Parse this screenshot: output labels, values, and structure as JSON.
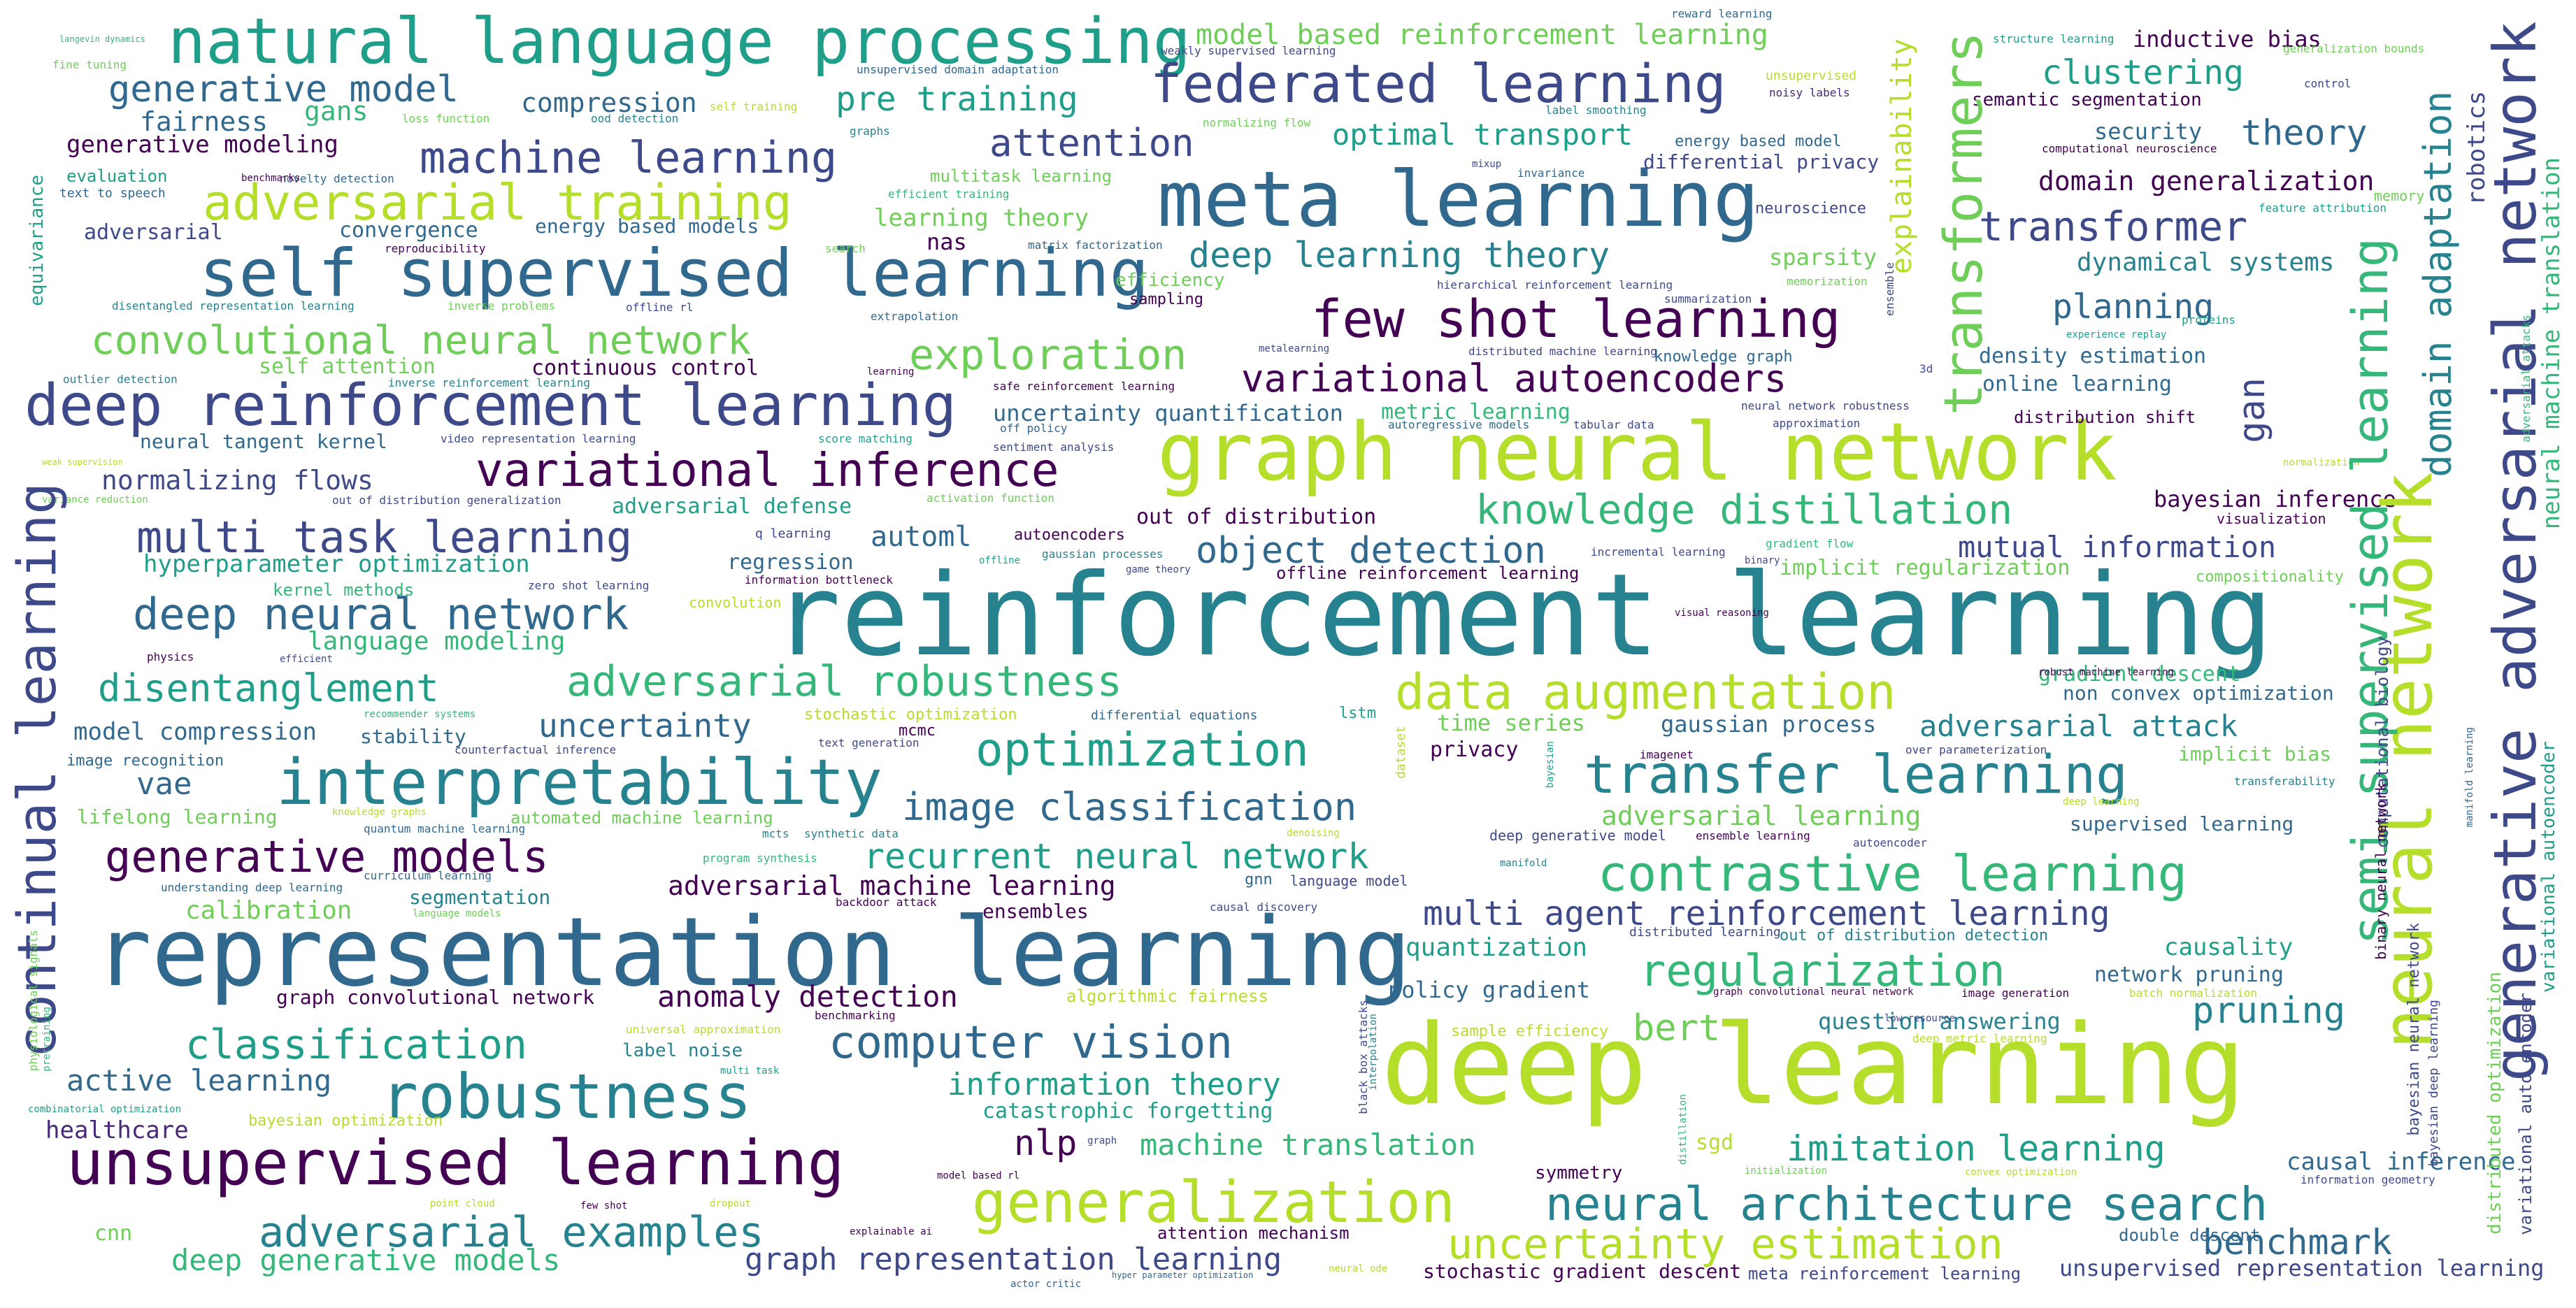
{
  "palette": {
    "lime": "#b5de2b",
    "green": "#6ece58",
    "teal_green": "#35b779",
    "teal": "#1f9e89",
    "cyan_teal": "#26828e",
    "blue": "#31688e",
    "indigo": "#3e4989",
    "violet": "#482878",
    "purple": "#440154"
  },
  "words": {
    "reinforcement_learning": "reinforcement learning",
    "deep_learning": "deep learning",
    "representation_learning": "representation learning",
    "graph_neural_network": "graph neural network",
    "meta_learning": "meta learning",
    "self_supervised_learning": "self supervised learning",
    "unsupervised_learning": "unsupervised learning",
    "natural_language_processing": "natural language processing",
    "deep_reinforcement_learning": "deep reinforcement learning",
    "interpretability": "interpretability",
    "generalization": "generalization",
    "robustness": "robustness",
    "federated_learning": "federated learning",
    "few_shot_learning": "few shot learning",
    "transfer_learning": "transfer learning",
    "contrastive_learning": "contrastive learning",
    "neural_network": "neural network",
    "generative_adversarial_network": "generative adversarial network",
    "semi_supervised_learning": "semi supervised learning",
    "transformers": "transformers",
    "continual_learning": "continual learning",
    "adversarial_training": "adversarial training",
    "machine_learning": "machine learning",
    "variational_inference": "variational inference",
    "adversarial_robustness": "adversarial robustness",
    "neural_architecture_search": "neural architecture search",
    "data_augmentation": "data augmentation",
    "computer_vision": "computer vision",
    "adversarial_examples": "adversarial examples",
    "uncertainty_estimation": "uncertainty estimation",
    "multi_task_learning": "multi task learning",
    "deep_neural_network": "deep neural network",
    "generative_models": "generative models",
    "convolutional_neural_network": "convolutional neural network",
    "knowledge_distillation": "knowledge distillation",
    "regularization": "regularization",
    "variational_autoencoders": "variational autoencoders",
    "multi_agent_reinforcement_learning": "multi agent reinforcement learning",
    "optimization": "optimization",
    "image_classification": "image classification",
    "disentanglement": "disentanglement",
    "classification": "classification",
    "exploration": "exploration",
    "recurrent_neural_network": "recurrent neural network",
    "object_detection": "object detection",
    "domain_adaptation": "domain adaptation",
    "transformer": "transformer",
    "deep_learning_theory": "deep learning theory",
    "generative_model": "generative model",
    "attention": "attention",
    "pre_training": "pre training",
    "clustering": "clustering",
    "theory": "theory",
    "model_based_reinforcement_learning": "model based reinforcement learning",
    "information_theory": "information theory",
    "machine_translation": "machine translation",
    "imitation_learning": "imitation learning",
    "benchmark": "benchmark",
    "graph_representation_learning": "graph representation learning",
    "deep_generative_models": "deep generative models",
    "active_learning": "active learning",
    "uncertainty": "uncertainty",
    "adversarial_attack": "adversarial attack",
    "adversarial_learning": "adversarial learning",
    "adversarial_machine_learning": "adversarial machine learning",
    "anomaly_detection": "anomaly detection",
    "planning": "planning",
    "optimal_transport": "optimal transport",
    "gan": "gan",
    "bert": "bert",
    "pruning": "pruning",
    "nlp": "nlp",
    "vae": "vae",
    "automl": "automl",
    "explainability": "explainability",
    "normalizing_flows": "normalizing flows",
    "mutual_information": "mutual information",
    "language_modeling": "language modeling",
    "calibration": "calibration",
    "healthcare": "healthcare",
    "domain_generalization": "domain generalization",
    "dynamical_systems": "dynamical systems",
    "causality": "causality",
    "causal_inference": "causal inference",
    "gaussian_process": "gaussian process",
    "quantization": "quantization",
    "policy_gradient": "policy gradient",
    "hyperparameter_optimization": "hyperparameter optimization",
    "fairness": "fairness",
    "gans": "gans",
    "compression": "compression",
    "generative_modeling": "generative modeling",
    "bayesian_inference": "bayesian inference",
    "model_compression": "model compression",
    "sparsity": "sparsity",
    "security": "security",
    "density_estimation": "density estimation",
    "online_learning": "online learning",
    "differential_privacy": "differential privacy",
    "question_answering": "question answering",
    "robotics": "robotics",
    "gradient_descent": "gradient descent",
    "uncertainty_quantification": "uncertainty quantification",
    "metric_learning": "metric learning",
    "learning_theory": "learning theory",
    "energy_based_models": "energy based models",
    "adversarial": "adversarial",
    "convergence": "convergence",
    "lifelong_learning": "lifelong learning",
    "self_attention": "self attention",
    "continuous_control": "continuous control",
    "neural_tangent_kernel": "neural tangent kernel",
    "adversarial_defense": "adversarial defense",
    "out_of_distribution": "out of distribution",
    "time_series": "time series",
    "privacy": "privacy",
    "network_pruning": "network pruning",
    "supervised_learning": "supervised learning",
    "semantic_segmentation": "semantic segmentation",
    "inductive_bias": "inductive bias",
    "catastrophic_forgetting": "catastrophic forgetting",
    "segmentation": "segmentation",
    "ensembles": "ensembles",
    "implicit_regularization": "implicit regularization",
    "implicit_bias": "implicit bias",
    "non_convex_optimization": "non convex optimization",
    "stability": "stability",
    "regression": "regression",
    "kernel_methods": "kernel methods",
    "nas": "nas",
    "sgd": "sgd",
    "cnn": "cnn",
    "symmetry": "symmetry",
    "stochastic_gradient_descent": "stochastic gradient descent",
    "meta_reinforcement_learning": "meta reinforcement learning",
    "unsupervised_representation_learning": "unsupervised representation learning",
    "double_descent": "double descent",
    "attention_mechanism": "attention mechanism",
    "graph_convolutional_network": "graph convolutional network",
    "label_noise": "label noise",
    "equivariance": "equivariance",
    "evaluation": "evaluation",
    "text_to_speech": "text to speech",
    "neuroscience": "neuroscience",
    "computational_neuroscience": "computational neuroscience",
    "energy_based_model": "energy based model",
    "noisy_labels": "noisy labels",
    "unsupervised": "unsupervised",
    "reward_learning": "reward learning",
    "weakly_supervised_learning": "weakly supervised learning",
    "unsupervised_domain_adaptation": "unsupervised domain adaptation",
    "structure_learning": "structure learning",
    "generalization_bounds": "generalization bounds",
    "control": "control",
    "fine_tuning": "fine tuning",
    "langevin_dynamics": "langevin dynamics",
    "loss_function": "loss function",
    "ood_detection": "ood detection",
    "self_training": "self training",
    "graphs": "graphs",
    "normalizing_flow": "normalizing flow",
    "label_smoothing": "label smoothing",
    "multitask_learning": "multitask learning",
    "novelty_detection": "novelty detection",
    "efficient_training": "efficient training",
    "benchmarks": "benchmarks",
    "reproducibility": "reproducibility",
    "mixup": "mixup",
    "invariance": "invariance",
    "memory": "memory",
    "feature_attribution": "feature attribution",
    "search": "search",
    "matrix_factorization": "matrix factorization",
    "efficiency": "efficiency",
    "sampling": "sampling",
    "hierarchical_reinforcement_learning": "hierarchical reinforcement learning",
    "summarization": "summarization",
    "memorization": "memorization",
    "ensemble": "ensemble",
    "experience_replay": "experience replay",
    "proteins": "proteins",
    "disentangled_representation_learning": "disentangled representation learning",
    "inverse_problems": "inverse problems",
    "offline_rl": "offline rl",
    "extrapolation": "extrapolation",
    "outlier_detection": "outlier detection",
    "inverse_reinforcement_learning": "inverse reinforcement learning",
    "learning": "learning",
    "safe_reinforcement_learning": "safe reinforcement learning",
    "metalearning": "metalearning",
    "distributed_machine_learning": "distributed machine learning",
    "knowledge_graph": "knowledge graph",
    "3d": "3d",
    "neural_network_robustness": "neural network robustness",
    "approximation": "approximation",
    "distribution_shift": "distribution shift",
    "off_policy": "off policy",
    "autoregressive_models": "autoregressive models",
    "tabular_data": "tabular data",
    "video_representation_learning": "video representation learning",
    "score_matching": "score matching",
    "sentiment_analysis": "sentiment analysis",
    "weak_supervision": "weak supervision",
    "variance_reduction": "variance reduction",
    "out_of_distribution_generalization": "out of distribution generalization",
    "activation_function": "activation function",
    "q_learning": "q learning",
    "autoencoders": "autoencoders",
    "offline": "offline",
    "gaussian_processes": "gaussian processes",
    "game_theory": "game theory",
    "incremental_learning": "incremental learning",
    "gradient_flow": "gradient flow",
    "binary": "binary",
    "compositionality": "compositionality",
    "visualization": "visualization",
    "normalization": "normalization",
    "zero_shot_learning": "zero shot learning",
    "information_bottleneck": "information bottleneck",
    "offline_reinforcement_learning": "offline reinforcement learning",
    "physics": "physics",
    "efficient": "efficient",
    "convolution": "convolution",
    "visual_reasoning": "visual reasoning",
    "robust_machine_learning": "robust machine learning",
    "recommender_systems": "recommender systems",
    "counterfactual_inference": "counterfactual inference",
    "stochastic_optimization": "stochastic optimization",
    "differential_equations": "differential equations",
    "mcmc": "mcmc",
    "lstm": "lstm",
    "text_generation": "text generation",
    "dataset": "dataset",
    "bayesian": "bayesian",
    "imagenet": "imagenet",
    "over_parameterization": "over parameterization",
    "transferability": "transferability",
    "image_recognition": "image recognition",
    "knowledge_graphs": "knowledge graphs",
    "quantum_machine_learning": "quantum machine learning",
    "automated_machine_learning": "automated machine learning",
    "mcts": "mcts",
    "synthetic_data": "synthetic data",
    "denoising": "denoising",
    "deep_generative_model": "deep generative model",
    "ensemble_learning": "ensemble learning",
    "autoencoder": "autoencoder",
    "deep_learning_small": "deep learning",
    "program_synthesis": "program synthesis",
    "manifold": "manifold",
    "understanding_deep_learning": "understanding deep learning",
    "curriculum_learning": "curriculum learning",
    "language_models": "language models",
    "backdoor_attack": "backdoor attack",
    "causal_discovery": "causal discovery",
    "language_model": "language model",
    "gnn": "gnn",
    "distributed_learning": "distributed learning",
    "out_of_distribution_detection": "out of distribution detection",
    "graph_convolutional_neural_network": "graph convolutional neural network",
    "image_generation": "image generation",
    "batch_normalization": "batch normalization",
    "low_resource": "low resource",
    "deep_metric_learning": "deep metric learning",
    "benchmarking": "benchmarking",
    "universal_approximation": "universal approximation",
    "sample_efficiency": "sample efficiency",
    "interpolation": "interpolation",
    "black_box_attacks": "black box attacks",
    "distillation": "distillation",
    "multi_task": "multi task",
    "pretraining": "pretraining",
    "combinatorial_optimization": "combinatorial optimization",
    "bayesian_optimization": "bayesian optimization",
    "graph": "graph",
    "algorithmic_fairness": "algorithmic fairness",
    "model_based_rl": "model based rl",
    "point_cloud": "point cloud",
    "few_shot": "few shot",
    "dropout": "dropout",
    "initialization": "initialization",
    "convex_optimization": "convex optimization",
    "information_geometry": "information geometry",
    "explainable_ai": "explainable ai",
    "actor_critic": "actor critic",
    "hyper_parameter_optimization": "hyper parameter optimization",
    "neural_ode": "neural ode",
    "physiological_signals": "physiological signals",
    "computational_biology": "computational biology",
    "binary_neural_network": "binary neural network",
    "bayesian_neural_network": "bayesian neural network",
    "bayesian_deep_learning": "bayesian deep learning",
    "distributed_optimization": "distributed optimization",
    "variational_auto_encoder": "variational auto encoder",
    "variational_autoencoder": "variational autoencoder",
    "neural_machine_translation": "neural machine translation",
    "adversarial_attacks": "adversarial attacks",
    "manifold_learning": "manifold learning"
  }
}
